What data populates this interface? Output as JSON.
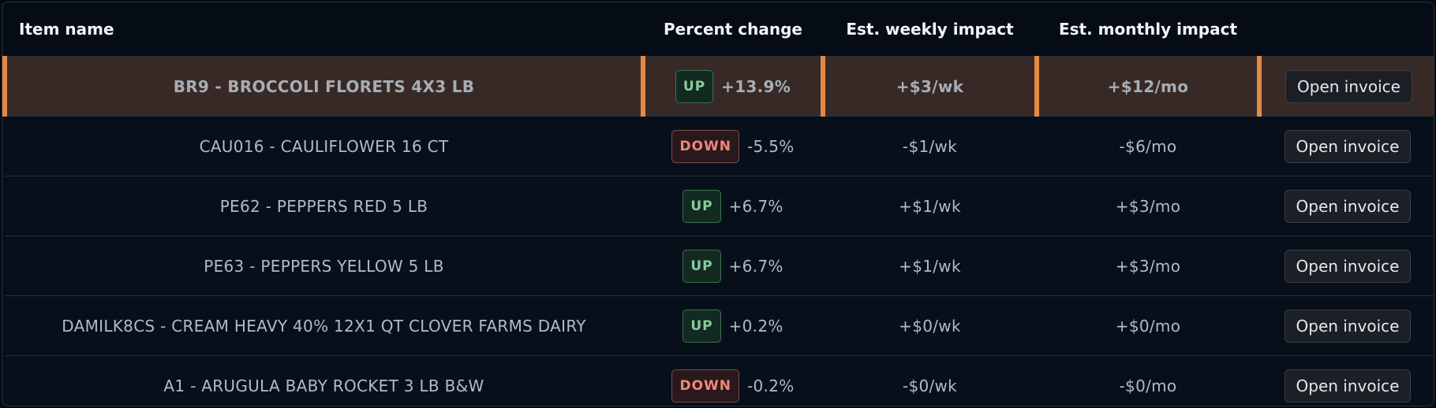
{
  "table": {
    "headers": [
      "Item name",
      "Percent change",
      "Est. weekly impact",
      "Est. monthly impact"
    ],
    "rows": [
      {
        "item": "BR9 - BROCCOLI FLORETS 4X3 LB",
        "direction": "UP",
        "percent": "+13.9%",
        "weekly": "+$3/wk",
        "monthly": "+$12/mo",
        "action": "Open invoice"
      },
      {
        "item": "CAU016 - CAULIFLOWER 16 CT",
        "direction": "DOWN",
        "percent": "-5.5%",
        "weekly": "-$1/wk",
        "monthly": "-$6/mo",
        "action": "Open invoice"
      },
      {
        "item": "PE62 - PEPPERS RED 5 LB",
        "direction": "UP",
        "percent": "+6.7%",
        "weekly": "+$1/wk",
        "monthly": "+$3/mo",
        "action": "Open invoice"
      },
      {
        "item": "PE63 - PEPPERS YELLOW 5 LB",
        "direction": "UP",
        "percent": "+6.7%",
        "weekly": "+$1/wk",
        "monthly": "+$3/mo",
        "action": "Open invoice"
      },
      {
        "item": "DAMILK8CS - CREAM HEAVY 40% 12X1 QT CLOVER FARMS DAIRY",
        "direction": "UP",
        "percent": "+0.2%",
        "weekly": "+$0/wk",
        "monthly": "+$0/mo",
        "action": "Open invoice"
      },
      {
        "item": "A1 - ARUGULA BABY ROCKET 3 LB B&W",
        "direction": "DOWN",
        "percent": "-0.2%",
        "weekly": "-$0/wk",
        "monthly": "-$0/mo",
        "action": "Open invoice"
      }
    ]
  }
}
